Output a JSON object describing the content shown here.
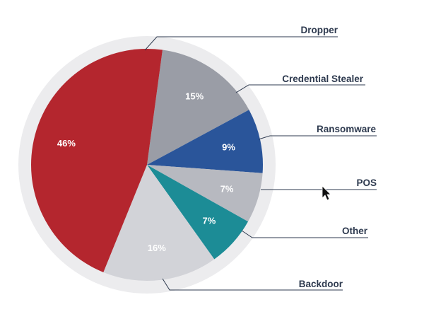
{
  "chart_data": {
    "type": "pie",
    "categories": [
      "Dropper",
      "Credential Stealer",
      "Ransomware",
      "POS",
      "Other",
      "Backdoor"
    ],
    "values": [
      15,
      9,
      7,
      7,
      16,
      46
    ],
    "value_labels": [
      "15%",
      "9%",
      "7%",
      "7%",
      "16%",
      "46%"
    ],
    "colors": [
      "#9a9da6",
      "#2a559a",
      "#b7b9c0",
      "#1c8c96",
      "#d2d3d8",
      "#b4262e"
    ],
    "legend": "callout labels with leader lines"
  },
  "ring_color": "#ececee",
  "cursor_icon": "mouse-pointer-icon"
}
